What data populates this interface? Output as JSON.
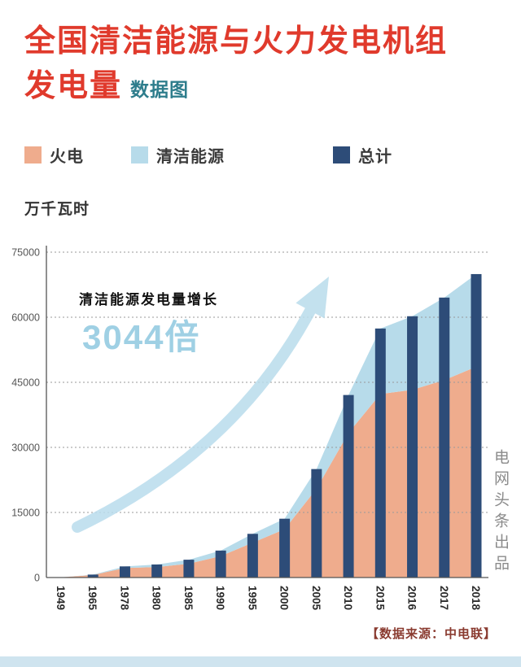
{
  "header": {
    "title_line1": "全国清洁能源与火力发电机组",
    "title_line2": "发电量",
    "title_suffix": "数据图"
  },
  "legend": {
    "items": [
      {
        "label": "火电",
        "color": "#efac8d"
      },
      {
        "label": "清洁能源",
        "color": "#b7dbea"
      },
      {
        "label": "总计",
        "color": "#2d4c78"
      }
    ]
  },
  "chart_data": {
    "type": "area+bar",
    "title": "全国清洁能源与火力发电机组发电量",
    "unit_label": "万千瓦时",
    "xlabel": "",
    "ylabel": "万千瓦时",
    "categories": [
      "1949",
      "1965",
      "1978",
      "1980",
      "1985",
      "1990",
      "1995",
      "2000",
      "2005",
      "2010",
      "2015",
      "2016",
      "2017",
      "2018"
    ],
    "series": [
      {
        "name": "火电",
        "type": "area",
        "stacked": true,
        "color": "#efac8d",
        "values": [
          36,
          594,
          2206,
          2424,
          3183,
          4950,
          8043,
          11142,
          20473,
          33319,
          42307,
          43273,
          45513,
          48583
        ]
      },
      {
        "name": "清洁能源",
        "type": "area",
        "stacked": true,
        "color": "#b7dbea",
        "values": [
          7,
          82,
          360,
          582,
          924,
          1262,
          2027,
          2414,
          4530,
          8753,
          15093,
          16955,
          19016,
          21364
        ]
      },
      {
        "name": "总计",
        "type": "bar",
        "color": "#2d4c78",
        "values": [
          43,
          676,
          2566,
          3006,
          4107,
          6212,
          10070,
          13556,
          25003,
          42072,
          57400,
          60228,
          64529,
          69947
        ]
      }
    ],
    "ylim": [
      0,
      75000
    ],
    "yticks": [
      0,
      15000,
      30000,
      45000,
      60000,
      75000
    ],
    "grid": "dotted-horizontal",
    "legend_position": "top",
    "annotation": {
      "line1": "清洁能源发电量增长",
      "line2": "3044倍"
    }
  },
  "footer": {
    "source": "【数据来源：中电联】"
  },
  "side": {
    "credit": "电网头条出品"
  },
  "colors": {
    "title_red": "#e03a2c",
    "title_teal": "#2e7d8c",
    "thermal": "#efac8d",
    "clean": "#b7dbea",
    "total": "#2d4c78",
    "bottom_strip": "#cfe4ef"
  }
}
